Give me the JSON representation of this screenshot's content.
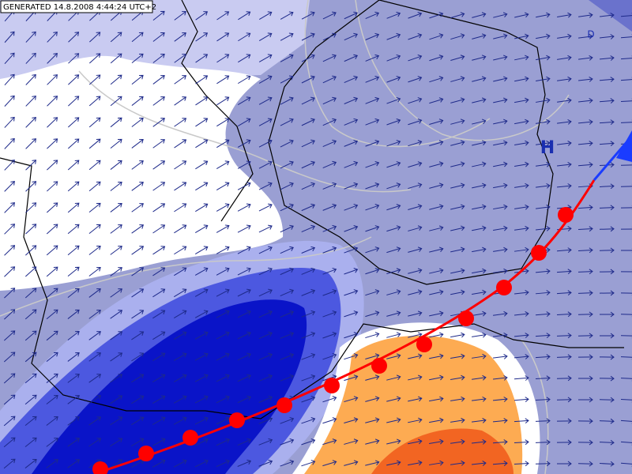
{
  "header": {
    "generated": "GENERATED 14.8.2008 4:44:24 UTC+2"
  },
  "pressure_labels": [
    {
      "label": "H"
    },
    {
      "label": "D"
    }
  ]
}
